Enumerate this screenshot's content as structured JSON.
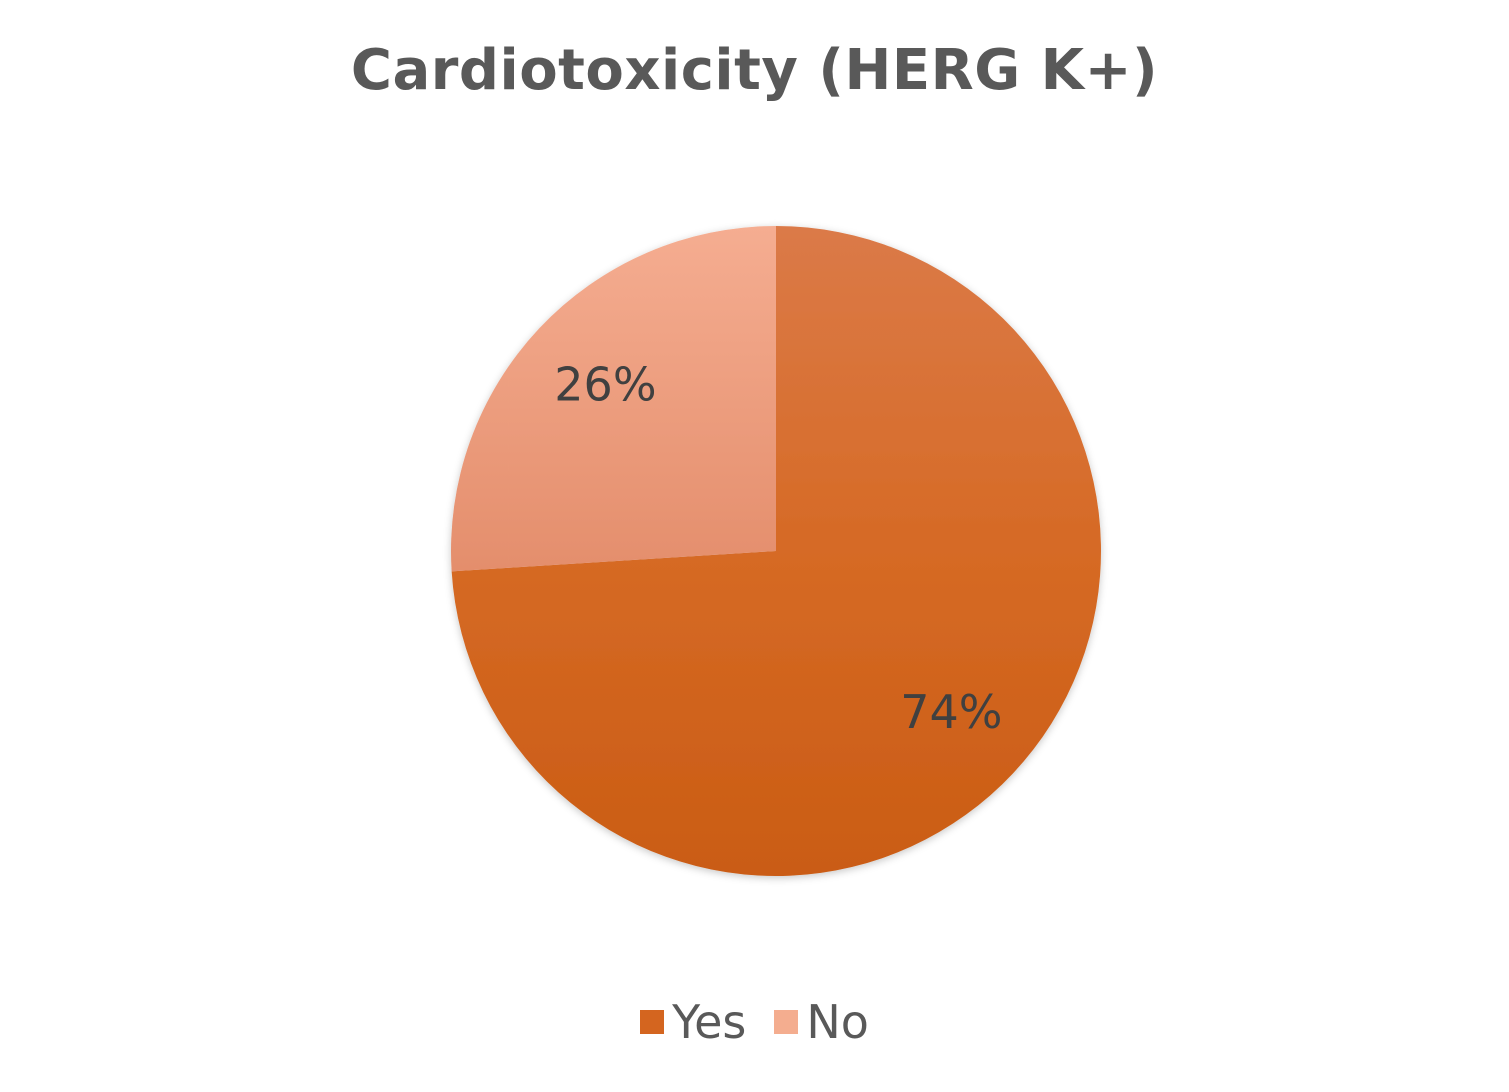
{
  "chart_data": {
    "type": "pie",
    "title": "Cardiotoxicity (HERG K+)",
    "categories": [
      "Yes",
      "No"
    ],
    "values": [
      74,
      26
    ],
    "value_labels": [
      "74%",
      "26%"
    ],
    "unit": "%",
    "colors": [
      "#d4651f",
      "#f4ad8f"
    ],
    "legend_position": "bottom",
    "start": "top, clockwise"
  }
}
